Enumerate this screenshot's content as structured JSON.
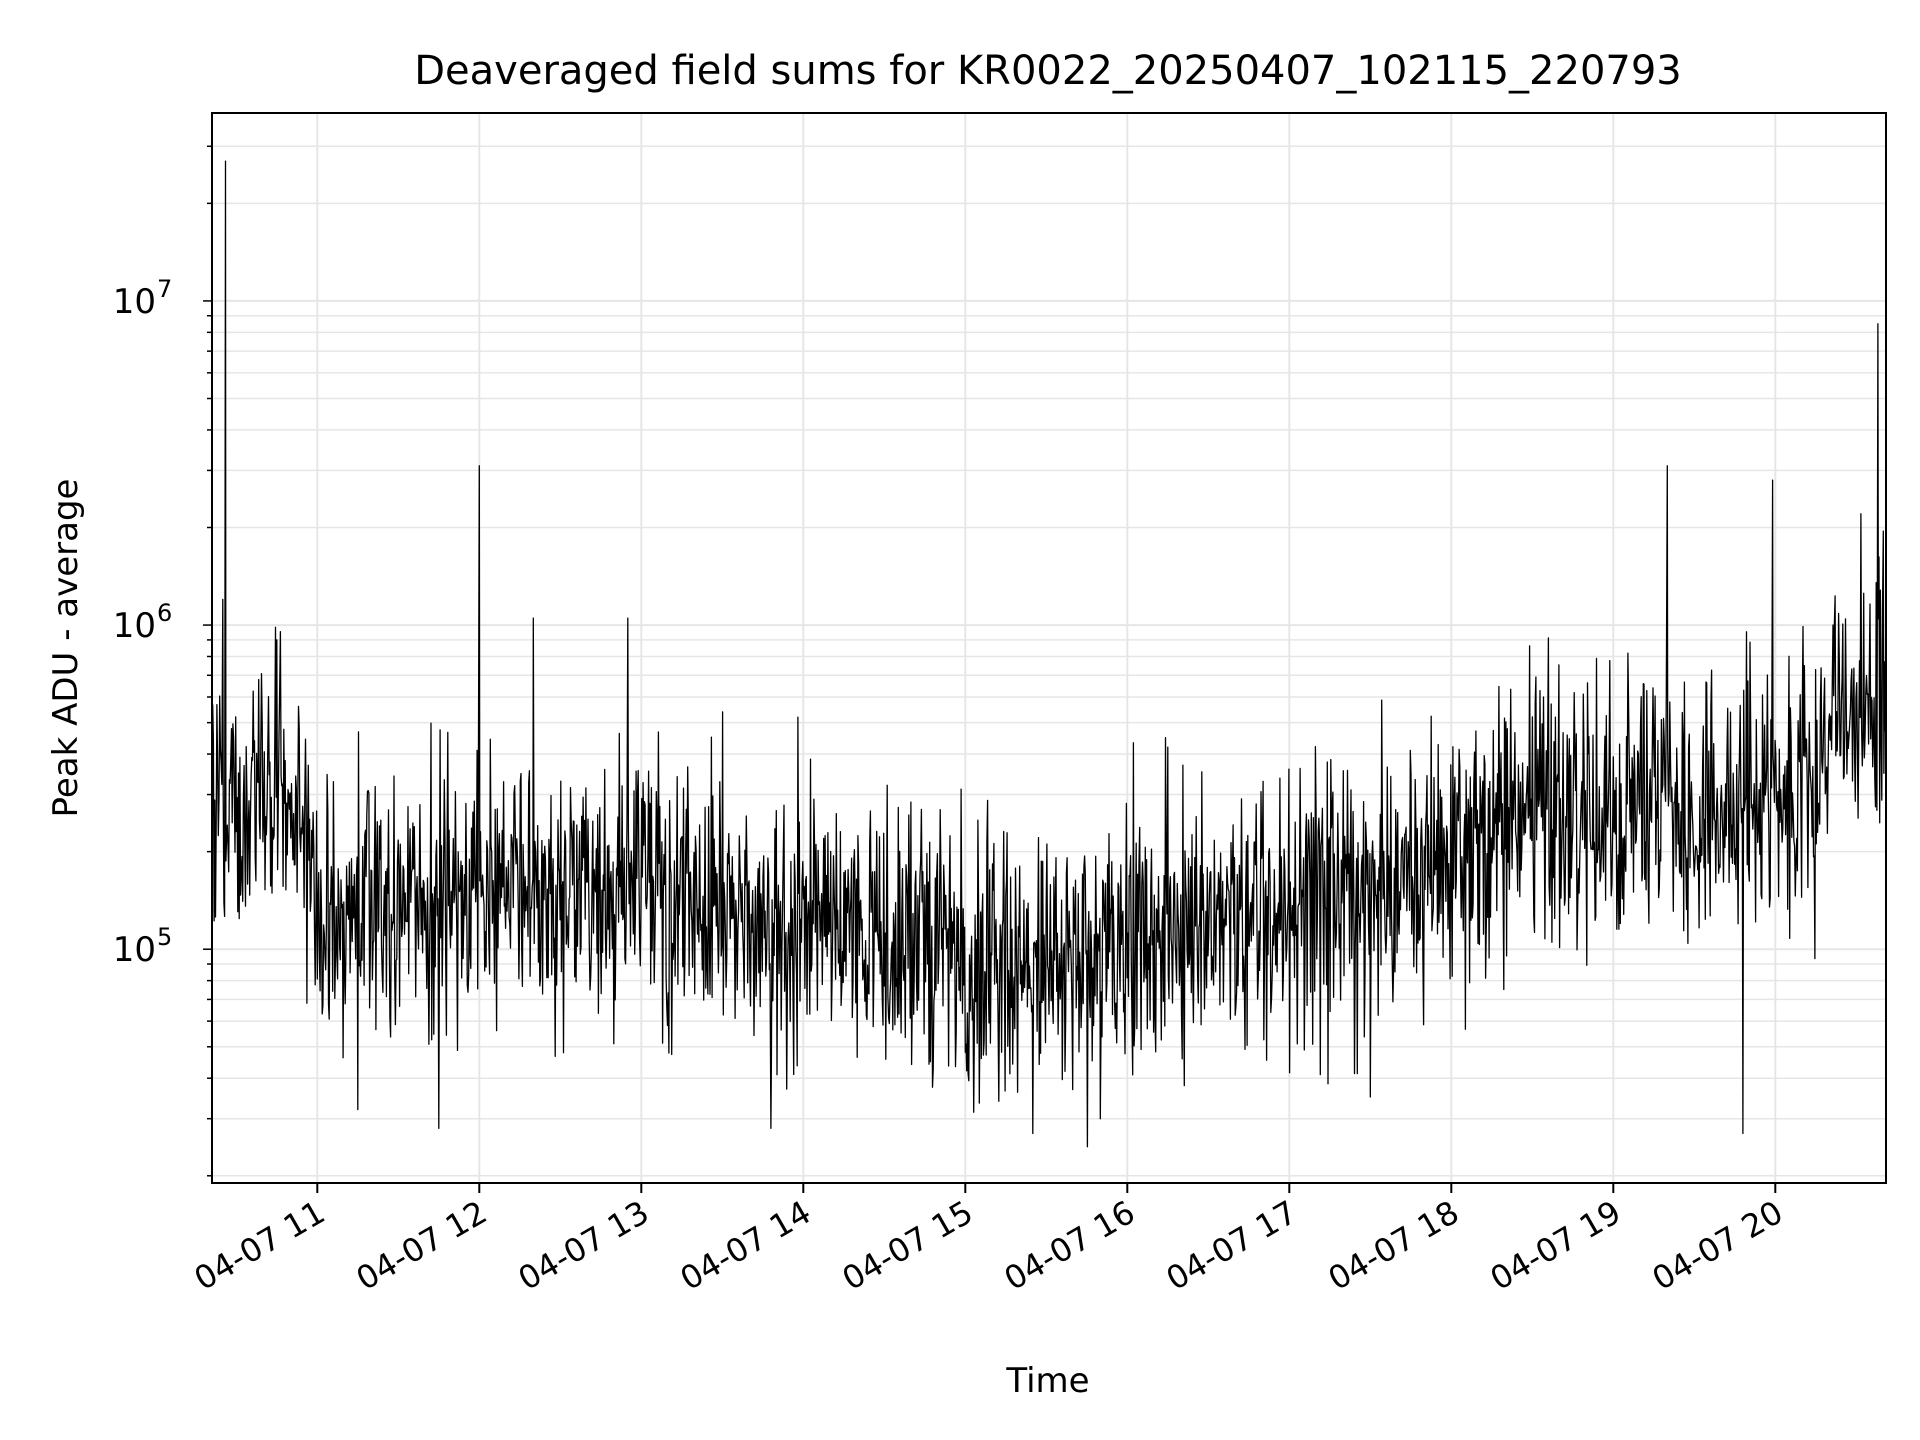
{
  "chart_data": {
    "type": "line",
    "title": "Deaveraged field sums for KR0022_20250407_102115_220793",
    "xlabel": "Time",
    "ylabel": "Peak ADU - average",
    "x_scale": "time",
    "y_scale": "log",
    "xlim": [
      "04-07 10:21",
      "04-07 20:41"
    ],
    "ylim": [
      19000,
      38000000
    ],
    "x_ticks": [
      "04-07 11",
      "04-07 12",
      "04-07 13",
      "04-07 14",
      "04-07 15",
      "04-07 16",
      "04-07 17",
      "04-07 18",
      "04-07 19",
      "04-07 20"
    ],
    "x_tick_hours": [
      11,
      12,
      13,
      14,
      15,
      16,
      17,
      18,
      19,
      20
    ],
    "y_ticks": [
      {
        "base": "10",
        "exp": "5",
        "value": 100000
      },
      {
        "base": "10",
        "exp": "6",
        "value": 1000000
      },
      {
        "base": "10",
        "exp": "7",
        "value": 10000000
      }
    ],
    "grid": true,
    "line_color": "#000000",
    "grid_color": "#e6e6e6",
    "series": [
      {
        "x": [
          "04-07 10:21",
          "04-07 10:35",
          "04-07 10:45",
          "04-07 10:50",
          "04-07 11:00",
          "04-07 11:30",
          "04-07 12:00",
          "04-07 12:30",
          "04-07 13:00",
          "04-07 13:30",
          "04-07 14:00",
          "04-07 14:30",
          "04-07 15:00",
          "04-07 15:30",
          "04-07 16:00",
          "04-07 16:30",
          "04-07 17:00",
          "04-07 17:30",
          "04-07 18:00",
          "04-07 18:30",
          "04-07 19:00",
          "04-07 19:30",
          "04-07 20:00",
          "04-07 20:15",
          "04-07 20:20",
          "04-07 20:30",
          "04-07 20:41"
        ],
        "y": [
          250000,
          280000,
          300000,
          320000,
          130000,
          140000,
          150000,
          145000,
          160000,
          130000,
          120000,
          115000,
          95000,
          90000,
          110000,
          120000,
          140000,
          160000,
          200000,
          240000,
          270000,
          260000,
          260000,
          260000,
          600000,
          550000,
          650000
        ]
      }
    ],
    "spikes": [
      {
        "x": "04-07 10:26",
        "y": 27000000
      },
      {
        "x": "04-07 10:25",
        "y": 1200000
      },
      {
        "x": "04-07 10:45",
        "y": 900000
      },
      {
        "x": "04-07 12:00",
        "y": 3100000
      },
      {
        "x": "04-07 12:20",
        "y": 1050000
      },
      {
        "x": "04-07 12:55",
        "y": 1050000
      },
      {
        "x": "04-07 13:58",
        "y": 520000
      },
      {
        "x": "04-07 16:15",
        "y": 420000
      },
      {
        "x": "04-07 19:20",
        "y": 3100000
      },
      {
        "x": "04-07 19:59",
        "y": 2800000
      },
      {
        "x": "04-07 20:38",
        "y": 8500000
      },
      {
        "x": "04-07 20:40",
        "y": 1950000
      }
    ],
    "dips": [
      {
        "x": "04-07 11:15",
        "y": 32000
      },
      {
        "x": "04-07 11:45",
        "y": 28000
      },
      {
        "x": "04-07 13:48",
        "y": 28000
      },
      {
        "x": "04-07 15:25",
        "y": 27000
      },
      {
        "x": "04-07 15:50",
        "y": 30000
      },
      {
        "x": "04-07 17:30",
        "y": 35000
      },
      {
        "x": "04-07 19:48",
        "y": 27000
      }
    ]
  }
}
